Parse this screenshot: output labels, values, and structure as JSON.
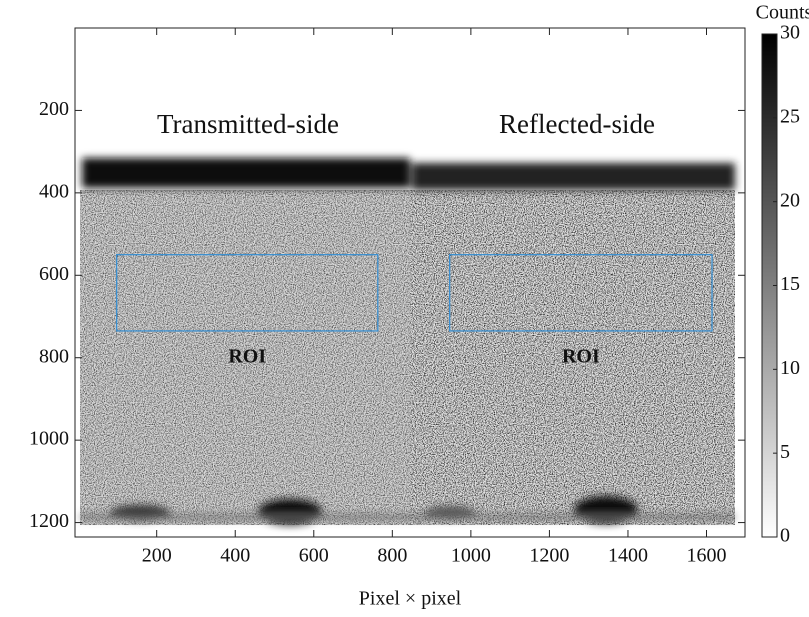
{
  "chart_data": {
    "type": "heatmap",
    "xlabel": "Pixel × pixel",
    "xlim": [
      -8,
      1698
    ],
    "xticks": [
      200,
      400,
      600,
      800,
      1000,
      1200,
      1400,
      1600
    ],
    "ylim": [
      0,
      1235
    ],
    "yticks": [
      200,
      400,
      600,
      800,
      1000,
      1200
    ],
    "y_inverted": true,
    "colormap": "gray_r",
    "colorbar": {
      "label": "Counts",
      "lim": [
        0,
        30
      ],
      "ticks": [
        0,
        5,
        10,
        15,
        20,
        25,
        30
      ]
    },
    "annotations": [
      "Transmitted-side",
      "Reflected-side"
    ],
    "rois": [
      {
        "label": "ROI",
        "color": "#3a8fd0",
        "x": [
          98,
          763
        ],
        "y": [
          550,
          735
        ]
      },
      {
        "label": "ROI",
        "color": "#3a8fd0",
        "x": [
          946,
          1614
        ],
        "y": [
          550,
          735
        ]
      }
    ]
  }
}
